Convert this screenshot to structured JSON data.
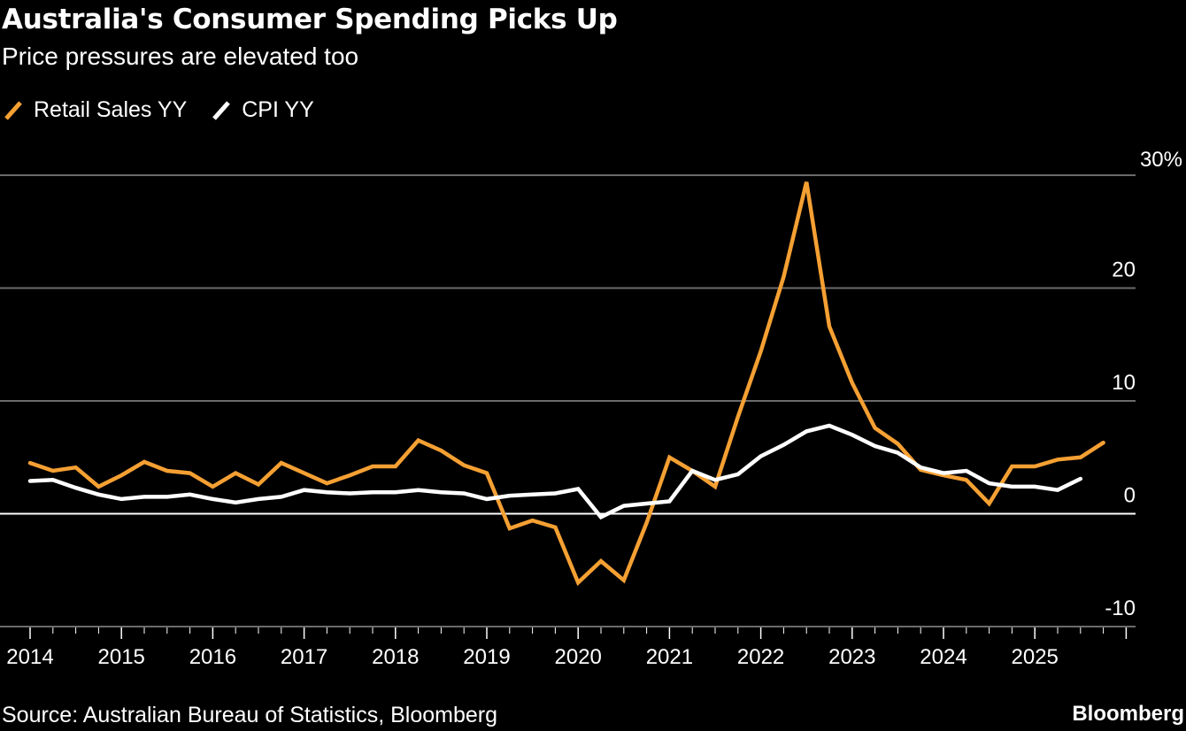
{
  "header": {
    "title": "Australia's Consumer Spending Picks Up",
    "subtitle": "Price pressures are elevated too"
  },
  "footer": {
    "source": "Source: Australian Bureau of Statistics, Bloomberg",
    "brand": "Bloomberg"
  },
  "chart_data": {
    "type": "line",
    "title": "Australia's Consumer Spending Picks Up",
    "subtitle": "Price pressures are elevated too",
    "xlabel": "",
    "ylabel": "",
    "x_start": 2014.0,
    "x_step": 0.25,
    "xlim": [
      2014,
      2026.2
    ],
    "ylim": [
      -10,
      30
    ],
    "y_ticks": [
      30,
      20,
      10,
      0,
      -10
    ],
    "y_tick_labels": [
      "30%",
      "20",
      "10",
      "0",
      "-10"
    ],
    "x_tick_labels": [
      "2014",
      "2015",
      "2016",
      "2017",
      "2018",
      "2019",
      "2020",
      "2021",
      "2022",
      "2023",
      "2024",
      "2025"
    ],
    "grid": true,
    "legend_position": "top-left",
    "series": [
      {
        "name": "Retail Sales YY",
        "color": "#f5a033",
        "values": [
          4.5,
          3.8,
          4.1,
          2.4,
          3.4,
          4.6,
          3.8,
          3.6,
          2.4,
          3.6,
          2.6,
          4.5,
          3.6,
          2.7,
          3.4,
          4.2,
          4.2,
          6.5,
          5.6,
          4.3,
          3.6,
          -1.3,
          -0.6,
          -1.2,
          -6.1,
          -4.2,
          -5.9,
          -0.8,
          5.0,
          3.8,
          2.4,
          8.6,
          14.4,
          21.0,
          29.4,
          16.6,
          11.6,
          7.6,
          6.2,
          3.9,
          3.4,
          3.0,
          0.9,
          4.2,
          4.2,
          4.8,
          5.0,
          6.3
        ]
      },
      {
        "name": "CPI YY",
        "color": "#ffffff",
        "values": [
          2.9,
          3.0,
          2.3,
          1.7,
          1.3,
          1.5,
          1.5,
          1.7,
          1.3,
          1.0,
          1.3,
          1.5,
          2.1,
          1.9,
          1.8,
          1.9,
          1.9,
          2.1,
          1.9,
          1.8,
          1.3,
          1.6,
          1.7,
          1.8,
          2.2,
          -0.3,
          0.7,
          0.9,
          1.1,
          3.8,
          3.0,
          3.5,
          5.1,
          6.1,
          7.3,
          7.8,
          7.0,
          6.0,
          5.4,
          4.1,
          3.6,
          3.8,
          2.7,
          2.4,
          2.4,
          2.1,
          3.1
        ]
      }
    ]
  }
}
